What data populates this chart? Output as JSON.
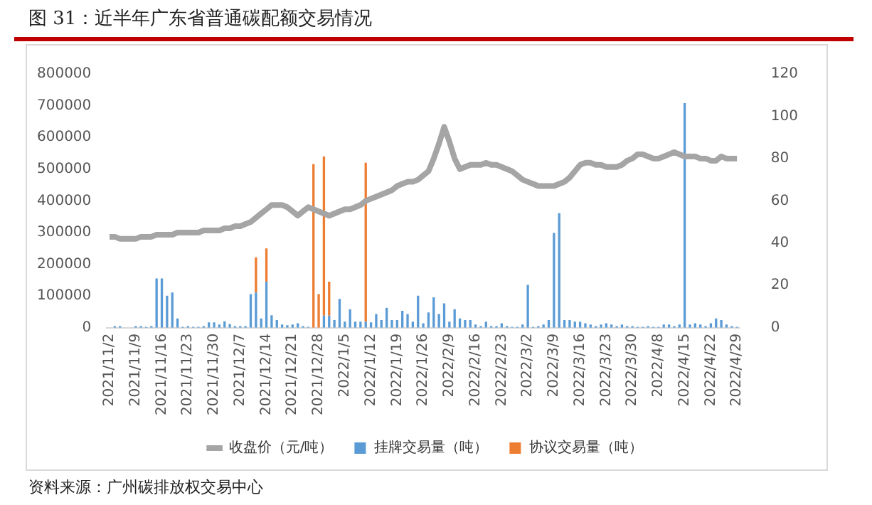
{
  "chart_data": {
    "type": "bar",
    "title": "图 31：近半年广东省普通碳配额交易情况",
    "categories": [
      "2021/11/2",
      null,
      null,
      null,
      null,
      "2021/11/9",
      null,
      null,
      null,
      null,
      "2021/11/16",
      null,
      null,
      null,
      null,
      "2021/11/23",
      null,
      null,
      null,
      null,
      "2021/11/30",
      null,
      null,
      null,
      null,
      "2021/12/7",
      null,
      null,
      null,
      null,
      "2021/12/14",
      null,
      null,
      null,
      null,
      "2021/12/21",
      null,
      null,
      null,
      null,
      "2021/12/28",
      null,
      null,
      null,
      null,
      "2022/1/5",
      null,
      null,
      null,
      null,
      "2022/1/12",
      null,
      null,
      null,
      null,
      "2022/1/19",
      null,
      null,
      null,
      null,
      "2022/1/26",
      null,
      null,
      null,
      null,
      "2022/2/9",
      null,
      null,
      null,
      null,
      "2022/2/16",
      null,
      null,
      null,
      null,
      "2022/2/23",
      null,
      null,
      null,
      null,
      "2022/3/2",
      null,
      null,
      null,
      null,
      "2022/3/9",
      null,
      null,
      null,
      null,
      "2022/3/16",
      null,
      null,
      null,
      null,
      "2022/3/23",
      null,
      null,
      null,
      null,
      "2022/3/30",
      null,
      null,
      null,
      null,
      "2022/4/8",
      null,
      null,
      null,
      null,
      "2022/4/15",
      null,
      null,
      null,
      null,
      "2022/4/22",
      null,
      null,
      null,
      null,
      "2022/4/29"
    ],
    "stacked": true,
    "series": [
      {
        "name": "挂牌交易量（吨）",
        "color": "#5b9bd5",
        "values": [
          null,
          5000,
          5000,
          0,
          0,
          5000,
          5000,
          3000,
          5000,
          155000,
          155000,
          101000,
          111000,
          29000,
          3000,
          5000,
          3000,
          3000,
          5000,
          17000,
          17000,
          10000,
          20000,
          12000,
          5000,
          5000,
          5000,
          106000,
          111000,
          29000,
          145000,
          39000,
          24000,
          10000,
          8000,
          10000,
          14000,
          5000,
          3000,
          0,
          0,
          38000,
          38000,
          24000,
          91000,
          19000,
          58000,
          19000,
          19000,
          19000,
          17000,
          43000,
          24000,
          63000,
          24000,
          24000,
          53000,
          43000,
          19000,
          101000,
          14000,
          48000,
          96000,
          43000,
          77000,
          19000,
          58000,
          29000,
          24000,
          24000,
          10000,
          5000,
          19000,
          5000,
          5000,
          14000,
          5000,
          3000,
          3000,
          10000,
          135000,
          3000,
          5000,
          10000,
          24000,
          299000,
          361000,
          24000,
          24000,
          19000,
          19000,
          14000,
          10000,
          5000,
          10000,
          14000,
          10000,
          5000,
          10000,
          5000,
          5000,
          3000,
          3000,
          5000,
          3000,
          3000,
          10000,
          10000,
          5000,
          10000,
          708000,
          10000,
          14000,
          10000,
          5000,
          14000,
          29000,
          24000,
          10000,
          5000,
          3000
        ]
      },
      {
        "name": "协议交易量（吨）",
        "color": "#ed7d31",
        "values": [
          0,
          0,
          0,
          0,
          0,
          0,
          0,
          0,
          0,
          0,
          0,
          0,
          0,
          0,
          0,
          0,
          0,
          0,
          0,
          0,
          0,
          0,
          0,
          0,
          0,
          0,
          0,
          0,
          111000,
          0,
          105000,
          0,
          0,
          0,
          0,
          0,
          0,
          0,
          0,
          516000,
          106000,
          502000,
          107000,
          0,
          0,
          0,
          0,
          0,
          0,
          501000,
          0,
          0,
          0,
          0,
          0,
          0,
          0,
          0,
          0,
          0,
          0,
          0,
          0,
          0,
          0,
          0,
          0,
          0,
          0,
          0,
          0,
          0,
          0,
          0,
          0,
          0,
          0,
          0,
          0,
          0,
          0,
          0,
          0,
          0,
          0,
          0,
          0,
          0,
          0,
          0,
          0,
          0,
          0,
          0,
          0,
          0,
          0,
          0,
          0,
          0,
          0,
          0,
          0,
          0,
          0,
          0,
          0,
          0,
          0,
          0,
          0,
          0,
          0,
          0,
          0,
          0,
          0,
          0,
          0,
          0,
          0
        ]
      },
      {
        "name": "收盘价（元/吨）",
        "type": "line",
        "axis": "y2",
        "color": "#a5a5a5",
        "values": [
          43,
          43,
          42,
          42,
          42,
          42,
          43,
          43,
          43,
          44,
          44,
          44,
          44,
          45,
          45,
          45,
          45,
          45,
          46,
          46,
          46,
          46,
          47,
          47,
          48,
          48,
          49,
          50,
          52,
          54,
          56,
          58,
          58,
          58,
          57,
          55,
          53,
          55,
          57,
          56,
          55,
          54,
          53,
          54,
          55,
          56,
          56,
          57,
          58,
          60,
          61,
          62,
          63,
          64,
          65,
          67,
          68,
          69,
          69,
          70,
          72,
          74,
          80,
          87,
          95,
          88,
          80,
          75,
          76,
          77,
          77,
          77,
          78,
          77,
          77,
          76,
          75,
          74,
          72,
          70,
          69,
          68,
          67,
          67,
          67,
          67,
          68,
          69,
          71,
          74,
          77,
          78,
          78,
          77,
          77,
          76,
          76,
          76,
          77,
          79,
          80,
          82,
          82,
          81,
          80,
          80,
          81,
          82,
          83,
          82,
          81,
          81,
          81,
          80,
          80,
          79,
          79,
          81,
          80,
          80,
          80
        ]
      }
    ],
    "ylim": [
      0,
      800000
    ],
    "yticks": [
      0,
      100000,
      200000,
      300000,
      400000,
      500000,
      600000,
      700000,
      800000
    ],
    "y2lim": [
      0,
      120
    ],
    "y2ticks": [
      0,
      20,
      40,
      60,
      80,
      100,
      120
    ],
    "legend": "bottom",
    "marker": "none",
    "annotations": [
      "资料来源：广州碳排放权交易中心"
    ]
  }
}
